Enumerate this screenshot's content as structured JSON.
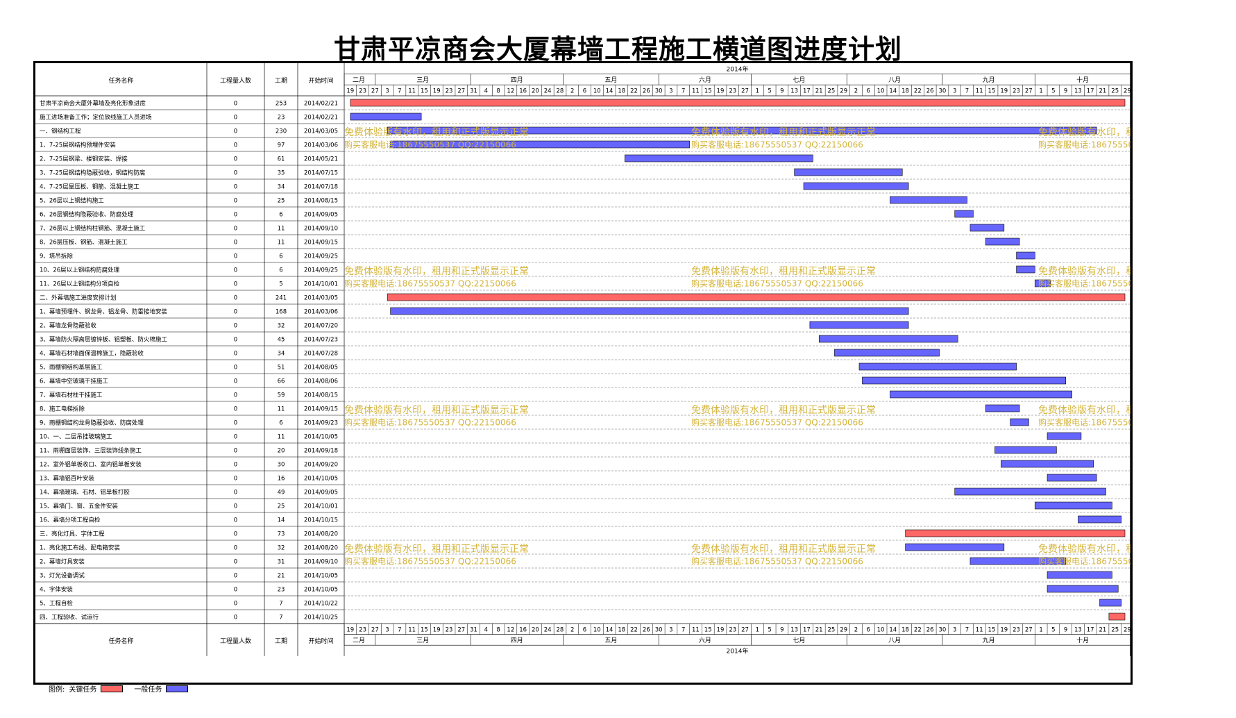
{
  "title": "甘肃平凉商会大厦幕墙工程施工横道图进度计划",
  "headers": {
    "task": "任务名称",
    "workers": "工程量人数",
    "duration": "工期",
    "start": "开始时间",
    "year": "2014年"
  },
  "timeline": {
    "months": [
      "二月",
      "三月",
      "四月",
      "五月",
      "六月",
      "七月",
      "八月",
      "九月",
      "十月"
    ],
    "month_starts": [
      "2014-02-01",
      "2014-03-01",
      "2014-04-01",
      "2014-05-01",
      "2014-06-01",
      "2014-07-01",
      "2014-08-01",
      "2014-09-01",
      "2014-10-01"
    ],
    "ticks": [
      [
        "2014-02-19",
        "19"
      ],
      [
        "2014-02-23",
        "23"
      ],
      [
        "2014-02-27",
        "27"
      ],
      [
        "2014-03-03",
        "3"
      ],
      [
        "2014-03-07",
        "7"
      ],
      [
        "2014-03-11",
        "11"
      ],
      [
        "2014-03-15",
        "15"
      ],
      [
        "2014-03-19",
        "19"
      ],
      [
        "2014-03-23",
        "23"
      ],
      [
        "2014-03-27",
        "27"
      ],
      [
        "2014-03-31",
        "31"
      ],
      [
        "2014-04-04",
        "4"
      ],
      [
        "2014-04-08",
        "8"
      ],
      [
        "2014-04-12",
        "12"
      ],
      [
        "2014-04-16",
        "16"
      ],
      [
        "2014-04-20",
        "20"
      ],
      [
        "2014-04-24",
        "24"
      ],
      [
        "2014-04-28",
        "28"
      ],
      [
        "2014-05-02",
        "2"
      ],
      [
        "2014-05-06",
        "6"
      ],
      [
        "2014-05-10",
        "10"
      ],
      [
        "2014-05-14",
        "14"
      ],
      [
        "2014-05-18",
        "18"
      ],
      [
        "2014-05-22",
        "22"
      ],
      [
        "2014-05-26",
        "26"
      ],
      [
        "2014-05-30",
        "30"
      ],
      [
        "2014-06-03",
        "3"
      ],
      [
        "2014-06-07",
        "7"
      ],
      [
        "2014-06-11",
        "11"
      ],
      [
        "2014-06-15",
        "15"
      ],
      [
        "2014-06-19",
        "19"
      ],
      [
        "2014-06-23",
        "23"
      ],
      [
        "2014-06-27",
        "27"
      ],
      [
        "2014-07-01",
        "1"
      ],
      [
        "2014-07-05",
        "5"
      ],
      [
        "2014-07-09",
        "9"
      ],
      [
        "2014-07-13",
        "13"
      ],
      [
        "2014-07-17",
        "17"
      ],
      [
        "2014-07-21",
        "21"
      ],
      [
        "2014-07-25",
        "25"
      ],
      [
        "2014-07-29",
        "29"
      ],
      [
        "2014-08-02",
        "2"
      ],
      [
        "2014-08-06",
        "6"
      ],
      [
        "2014-08-10",
        "10"
      ],
      [
        "2014-08-14",
        "14"
      ],
      [
        "2014-08-18",
        "18"
      ],
      [
        "2014-08-22",
        "22"
      ],
      [
        "2014-08-26",
        "26"
      ],
      [
        "2014-08-30",
        "30"
      ],
      [
        "2014-09-03",
        "3"
      ],
      [
        "2014-09-07",
        "7"
      ],
      [
        "2014-09-11",
        "11"
      ],
      [
        "2014-09-15",
        "15"
      ],
      [
        "2014-09-19",
        "19"
      ],
      [
        "2014-09-23",
        "23"
      ],
      [
        "2014-09-27",
        "27"
      ],
      [
        "2014-10-01",
        "1"
      ],
      [
        "2014-10-05",
        "5"
      ],
      [
        "2014-10-09",
        "9"
      ],
      [
        "2014-10-13",
        "13"
      ],
      [
        "2014-10-17",
        "17"
      ],
      [
        "2014-10-21",
        "21"
      ],
      [
        "2014-10-25",
        "25"
      ],
      [
        "2014-10-29",
        "29"
      ]
    ],
    "range": [
      "2014-02-19",
      "2014-11-01"
    ]
  },
  "chart_data": {
    "type": "gantt",
    "title": "甘肃平凉商会大厦幕墙工程施工横道图进度计划",
    "tasks": [
      {
        "name": "甘肃平凉商会大厦外幕墙及亮化形象进度",
        "workers": "0",
        "duration": "253",
        "start": "2014/02/21",
        "kind": "critical"
      },
      {
        "name": "施工进场准备工作；定位放线施工人员进场",
        "workers": "0",
        "duration": "23",
        "start": "2014/02/21",
        "kind": "normal"
      },
      {
        "name": "一、钢结构工程",
        "workers": "0",
        "duration": "230",
        "start": "2014/03/05",
        "kind": "normal"
      },
      {
        "name": "1、7-25层钢结构预埋件安装",
        "workers": "0",
        "duration": "97",
        "start": "2014/03/06",
        "kind": "normal"
      },
      {
        "name": "2、7-25层钢梁、楼钢安装、焊接",
        "workers": "0",
        "duration": "61",
        "start": "2014/05/21",
        "kind": "normal"
      },
      {
        "name": "3、7-25层钢结构隐蔽验收，钢结构防腐",
        "workers": "0",
        "duration": "35",
        "start": "2014/07/15",
        "kind": "normal"
      },
      {
        "name": "4、7-25层屋压板、钢筋、混凝土施工",
        "workers": "0",
        "duration": "34",
        "start": "2014/07/18",
        "kind": "normal"
      },
      {
        "name": "5、26层以上钢结构施工",
        "workers": "0",
        "duration": "25",
        "start": "2014/08/15",
        "kind": "normal"
      },
      {
        "name": "6、26层钢结构隐蔽验收、防腐处理",
        "workers": "0",
        "duration": "6",
        "start": "2014/09/05",
        "kind": "normal"
      },
      {
        "name": "7、26层以上钢结构柱钢筋、混凝土施工",
        "workers": "0",
        "duration": "11",
        "start": "2014/09/10",
        "kind": "normal"
      },
      {
        "name": "8、26层压板、钢筋、混凝土施工",
        "workers": "0",
        "duration": "11",
        "start": "2014/09/15",
        "kind": "normal"
      },
      {
        "name": "9、塔吊拆除",
        "workers": "0",
        "duration": "6",
        "start": "2014/09/25",
        "kind": "normal"
      },
      {
        "name": "10、26层以上钢结构防腐处理",
        "workers": "0",
        "duration": "6",
        "start": "2014/09/25",
        "kind": "normal"
      },
      {
        "name": "11、26层以上钢结构分项自检",
        "workers": "0",
        "duration": "5",
        "start": "2014/10/01",
        "kind": "normal"
      },
      {
        "name": "二、外幕墙施工进度安排计划",
        "workers": "0",
        "duration": "241",
        "start": "2014/03/05",
        "kind": "critical"
      },
      {
        "name": "1、幕墙预埋件、钢龙骨、铝龙骨、防雷接地安装",
        "workers": "0",
        "duration": "168",
        "start": "2014/03/06",
        "kind": "normal"
      },
      {
        "name": "2、幕墙龙骨隐蔽验收",
        "workers": "0",
        "duration": "32",
        "start": "2014/07/20",
        "kind": "normal"
      },
      {
        "name": "3、幕墙防火隔离层镀锌板、铝塑板、防火棉施工",
        "workers": "0",
        "duration": "45",
        "start": "2014/07/23",
        "kind": "normal"
      },
      {
        "name": "4、幕墙石材墙面保温棉施工，隐蔽验收",
        "workers": "0",
        "duration": "34",
        "start": "2014/07/28",
        "kind": "normal"
      },
      {
        "name": "5、雨棚钢结构基层施工",
        "workers": "0",
        "duration": "51",
        "start": "2014/08/05",
        "kind": "normal"
      },
      {
        "name": "6、幕墙中空玻璃干挂施工",
        "workers": "0",
        "duration": "66",
        "start": "2014/08/06",
        "kind": "normal"
      },
      {
        "name": "7、幕墙石材柱干挂施工",
        "workers": "0",
        "duration": "59",
        "start": "2014/08/15",
        "kind": "normal"
      },
      {
        "name": "8、施工电梯拆除",
        "workers": "0",
        "duration": "11",
        "start": "2014/09/15",
        "kind": "normal"
      },
      {
        "name": "9、雨棚钢结构龙骨隐蔽验收、防腐处理",
        "workers": "0",
        "duration": "6",
        "start": "2014/09/23",
        "kind": "normal"
      },
      {
        "name": "10、一、二层吊挂玻璃施工",
        "workers": "0",
        "duration": "11",
        "start": "2014/10/05",
        "kind": "normal"
      },
      {
        "name": "11、雨棚面层装饰、三层装饰线条施工",
        "workers": "0",
        "duration": "20",
        "start": "2014/09/18",
        "kind": "normal"
      },
      {
        "name": "12、室外铝单板收口、室内铝单板安装",
        "workers": "0",
        "duration": "30",
        "start": "2014/09/20",
        "kind": "normal"
      },
      {
        "name": "13、幕墙铝百叶安装",
        "workers": "0",
        "duration": "16",
        "start": "2014/10/05",
        "kind": "normal"
      },
      {
        "name": "14、幕墙玻璃、石材、铝单板打胶",
        "workers": "0",
        "duration": "49",
        "start": "2014/09/05",
        "kind": "normal"
      },
      {
        "name": "15、幕墙门、窗、五金件安装",
        "workers": "0",
        "duration": "25",
        "start": "2014/10/01",
        "kind": "normal"
      },
      {
        "name": "16、幕墙分项工程自检",
        "workers": "0",
        "duration": "14",
        "start": "2014/10/15",
        "kind": "normal"
      },
      {
        "name": "三、亮化灯具、字体工程",
        "workers": "0",
        "duration": "73",
        "start": "2014/08/20",
        "kind": "critical"
      },
      {
        "name": "1、亮化施工布线、配电箱安装",
        "workers": "0",
        "duration": "32",
        "start": "2014/08/20",
        "kind": "normal"
      },
      {
        "name": "2、幕墙灯具安装",
        "workers": "0",
        "duration": "31",
        "start": "2014/09/10",
        "kind": "normal"
      },
      {
        "name": "3、灯光设备调试",
        "workers": "0",
        "duration": "21",
        "start": "2014/10/05",
        "kind": "normal"
      },
      {
        "name": "4、字体安装",
        "workers": "0",
        "duration": "23",
        "start": "2014/10/05",
        "kind": "normal"
      },
      {
        "name": "5、工程自检",
        "workers": "0",
        "duration": "7",
        "start": "2014/10/22",
        "kind": "normal"
      },
      {
        "name": "四、工程验收、试运行",
        "workers": "0",
        "duration": "7",
        "start": "2014/10/25",
        "kind": "critical"
      }
    ]
  },
  "colors": {
    "critical": "#ff6666",
    "normal": "#6666ff",
    "watermark": "#d4b43c",
    "border": "#000000"
  },
  "watermark": {
    "line1": "免费体验版有水印，租用和正式版显示正常",
    "line2": "购买客服电话:18675550537 QQ:22150066"
  },
  "legend": {
    "label": "图例:",
    "critical": "关键任务",
    "normal": "一般任务"
  }
}
